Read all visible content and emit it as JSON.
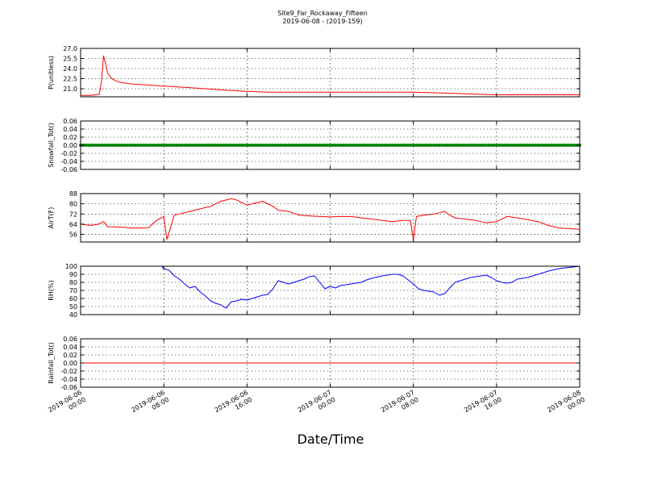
{
  "figure": {
    "title_line1": "Site9_Far_Rockaway_Fifteen",
    "title_line2": "2019-06-08 - (2019-159)",
    "xlabel": "Date/Time"
  },
  "x_ticks": [
    {
      "l1": "2019-06-06",
      "l2": "00:00",
      "t": 0
    },
    {
      "l1": "2019-06-06",
      "l2": "08:00",
      "t": 8
    },
    {
      "l1": "2019-06-06",
      "l2": "16:00",
      "t": 16
    },
    {
      "l1": "2019-06-07",
      "l2": "00:00",
      "t": 24
    },
    {
      "l1": "2019-06-07",
      "l2": "08:00",
      "t": 32
    },
    {
      "l1": "2019-06-07",
      "l2": "16:00",
      "t": 40
    },
    {
      "l1": "2019-06-08",
      "l2": "00:00",
      "t": 48
    }
  ],
  "chart_data": [
    {
      "type": "line",
      "ylabel": "P(unitless)",
      "color": "#ff0000",
      "ylim": [
        19.8,
        27.0
      ],
      "yticks": [
        "27.0",
        "25.5",
        "24.0",
        "22.5",
        "21.0"
      ],
      "ytick_values": [
        27.0,
        25.5,
        24.0,
        22.5,
        21.0
      ],
      "grid": true,
      "x_hours": [
        0,
        1.0,
        1.8,
        2.0,
        2.2,
        2.4,
        2.6,
        3.0,
        3.5,
        4.0,
        5.0,
        6.0,
        8.0,
        10.0,
        12.0,
        14.0,
        16.0,
        18.0,
        20.0,
        24.0,
        28.0,
        32.0,
        34.0,
        36.0,
        38.0,
        40.0,
        44.0,
        48.0
      ],
      "y": [
        20.0,
        20.0,
        20.2,
        22.0,
        25.9,
        24.8,
        23.3,
        22.5,
        22.1,
        21.9,
        21.7,
        21.6,
        21.4,
        21.2,
        21.0,
        20.8,
        20.6,
        20.5,
        20.5,
        20.5,
        20.5,
        20.5,
        20.4,
        20.3,
        20.2,
        20.1,
        20.1,
        20.1
      ]
    },
    {
      "type": "scatter",
      "ylabel": "Snowfall_Tot()",
      "color": "#008000",
      "ylim": [
        -0.06,
        0.06
      ],
      "yticks": [
        "0.06",
        "0.04",
        "0.02",
        "0.00",
        "-0.02",
        "-0.04",
        "-0.06"
      ],
      "ytick_values": [
        0.06,
        0.04,
        0.02,
        0.0,
        -0.02,
        -0.04,
        -0.06
      ],
      "grid": true,
      "x_range_hours": [
        0,
        48
      ],
      "interval_min": 15,
      "constant_value": 0.0
    },
    {
      "type": "line",
      "ylabel": "AirT(F)",
      "color": "#ff0000",
      "ylim": [
        50,
        88
      ],
      "yticks": [
        "88",
        "80",
        "72",
        "64",
        "56"
      ],
      "ytick_values": [
        88,
        80,
        72,
        64,
        56
      ],
      "grid": true,
      "x_hours": [
        0,
        1.0,
        1.7,
        2.2,
        2.6,
        3.0,
        4.0,
        5.0,
        6.0,
        6.3,
        6.6,
        7.0,
        7.5,
        7.8,
        8.0,
        8.3,
        9.0,
        9.5,
        10.0,
        10.5,
        11.0,
        11.5,
        12.0,
        12.5,
        13.0,
        13.5,
        14.0,
        14.5,
        15.0,
        15.5,
        16.0,
        16.5,
        17.0,
        17.5,
        18.0,
        18.5,
        19.0,
        20.0,
        21.0,
        22.0,
        23.0,
        23.5,
        24.0,
        24.5,
        26.0,
        27.0,
        28.0,
        29.0,
        30.0,
        31.0,
        31.7,
        32.0,
        32.3,
        33.0,
        34.0,
        34.5,
        35.0,
        35.5,
        36.0,
        37.0,
        38.0,
        39.0,
        40.0,
        40.5,
        41.0,
        42.0,
        44.0,
        45.0,
        46.0,
        48.0
      ],
      "y": [
        64,
        63,
        64,
        66,
        62,
        62,
        61.5,
        61,
        61,
        61,
        61.5,
        65,
        68,
        69,
        70,
        52,
        71,
        72,
        73,
        74,
        75,
        76,
        77,
        78,
        80,
        82,
        83,
        84,
        83,
        81,
        79,
        80,
        81,
        82,
        80,
        78,
        75,
        74,
        71,
        70.5,
        70,
        70,
        69.5,
        70,
        70,
        69,
        68,
        67,
        66,
        67,
        67,
        52,
        70,
        71,
        72,
        73,
        74,
        71,
        69,
        68,
        67,
        65,
        66,
        68,
        70,
        69,
        66,
        63,
        61,
        60
      ]
    },
    {
      "type": "line",
      "ylabel": "RH(%)",
      "color": "#0000ff",
      "ylim": [
        40,
        100
      ],
      "yticks": [
        "100",
        "90",
        "80",
        "70",
        "60",
        "50",
        "40"
      ],
      "ytick_values": [
        100,
        90,
        80,
        70,
        60,
        50,
        40
      ],
      "grid": true,
      "x_hours": [
        0,
        7.8,
        8.0,
        8.5,
        9.0,
        9.5,
        10.0,
        10.5,
        11.0,
        11.5,
        12.0,
        12.5,
        13.0,
        13.5,
        14.0,
        14.5,
        15.0,
        15.5,
        16.0,
        16.5,
        17.0,
        17.5,
        18.0,
        18.5,
        19.0,
        19.5,
        20.0,
        20.5,
        21.0,
        21.5,
        22.0,
        22.5,
        23.0,
        23.5,
        24.0,
        24.5,
        25.0,
        25.5,
        26.0,
        26.5,
        27.0,
        27.5,
        28.0,
        29.0,
        30.0,
        30.5,
        31.0,
        32.0,
        32.5,
        33.0,
        34.0,
        34.5,
        35.0,
        35.5,
        36.0,
        36.5,
        37.0,
        37.5,
        38.0,
        38.5,
        39.0,
        39.5,
        40.0,
        40.5,
        41.0,
        41.5,
        42.0,
        43.0,
        44.0,
        45.0,
        46.0,
        48.0
      ],
      "y": [
        100,
        100,
        97,
        95,
        88,
        84,
        78,
        73,
        75,
        68,
        63,
        57,
        54,
        52,
        48,
        56,
        57,
        59,
        58,
        60,
        62,
        64,
        65,
        72,
        82,
        80,
        78,
        80,
        82,
        84,
        87,
        88,
        80,
        72,
        75,
        73,
        76,
        77,
        78,
        79,
        80,
        83,
        85,
        88,
        90,
        90,
        88,
        78,
        72,
        70,
        68,
        64,
        66,
        73,
        80,
        82,
        84,
        86,
        87,
        88,
        89,
        86,
        82,
        80,
        79,
        80,
        84,
        86,
        90,
        94,
        97,
        100
      ]
    },
    {
      "type": "line",
      "ylabel": "Rainfall_Tot()",
      "color": "#ff0000",
      "ylim": [
        -0.06,
        0.06
      ],
      "yticks": [
        "0.06",
        "0.04",
        "0.02",
        "0.00",
        "-0.02",
        "-0.04",
        "-0.06"
      ],
      "ytick_values": [
        0.06,
        0.04,
        0.02,
        0.0,
        -0.02,
        -0.04,
        -0.06
      ],
      "grid": true,
      "x_hours": [
        0,
        48
      ],
      "y": [
        0.0,
        0.0
      ]
    }
  ]
}
